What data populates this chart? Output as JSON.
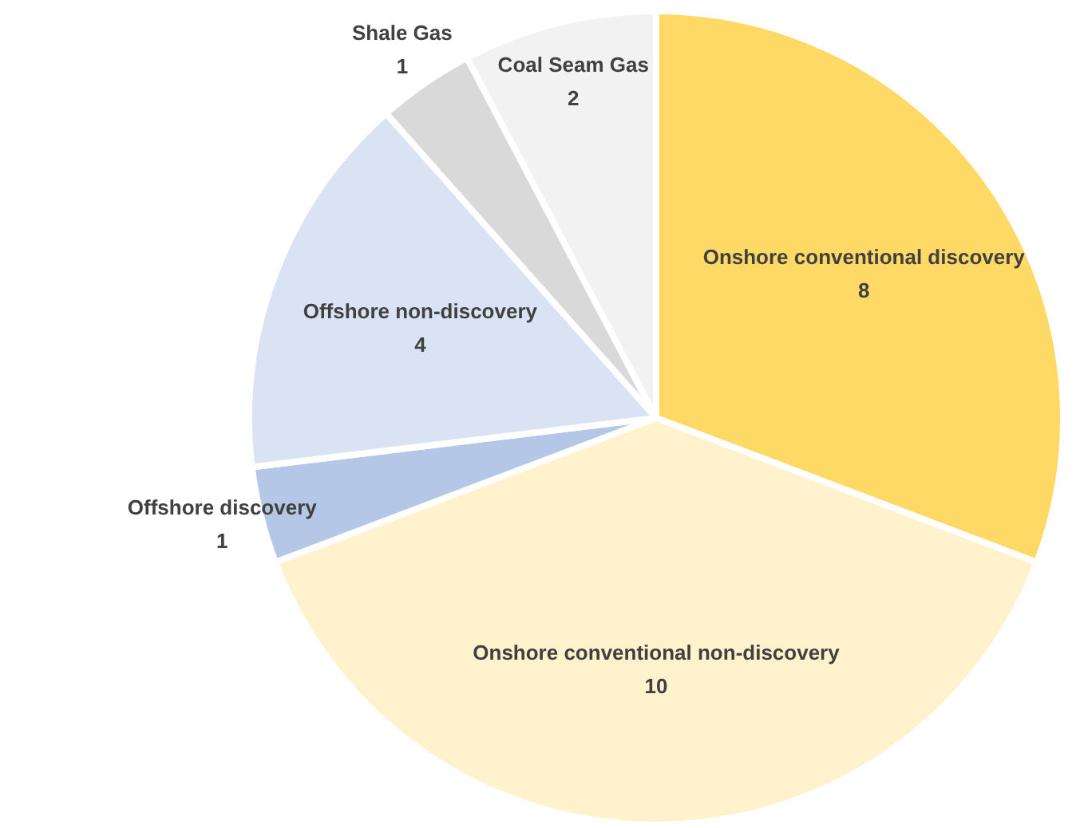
{
  "chart_data": {
    "type": "pie",
    "categories": [
      "Onshore conventional discovery",
      "Onshore conventional non-discovery",
      "Offshore discovery",
      "Offshore non-discovery",
      "Shale Gas",
      "Coal Seam Gas"
    ],
    "values": [
      8,
      10,
      1,
      4,
      1,
      2
    ],
    "colors": [
      "#ffd966",
      "#fff2cc",
      "#b4c7e7",
      "#dae3f3",
      "#d9d9d9",
      "#f2f2f2"
    ],
    "data_labels": true
  }
}
